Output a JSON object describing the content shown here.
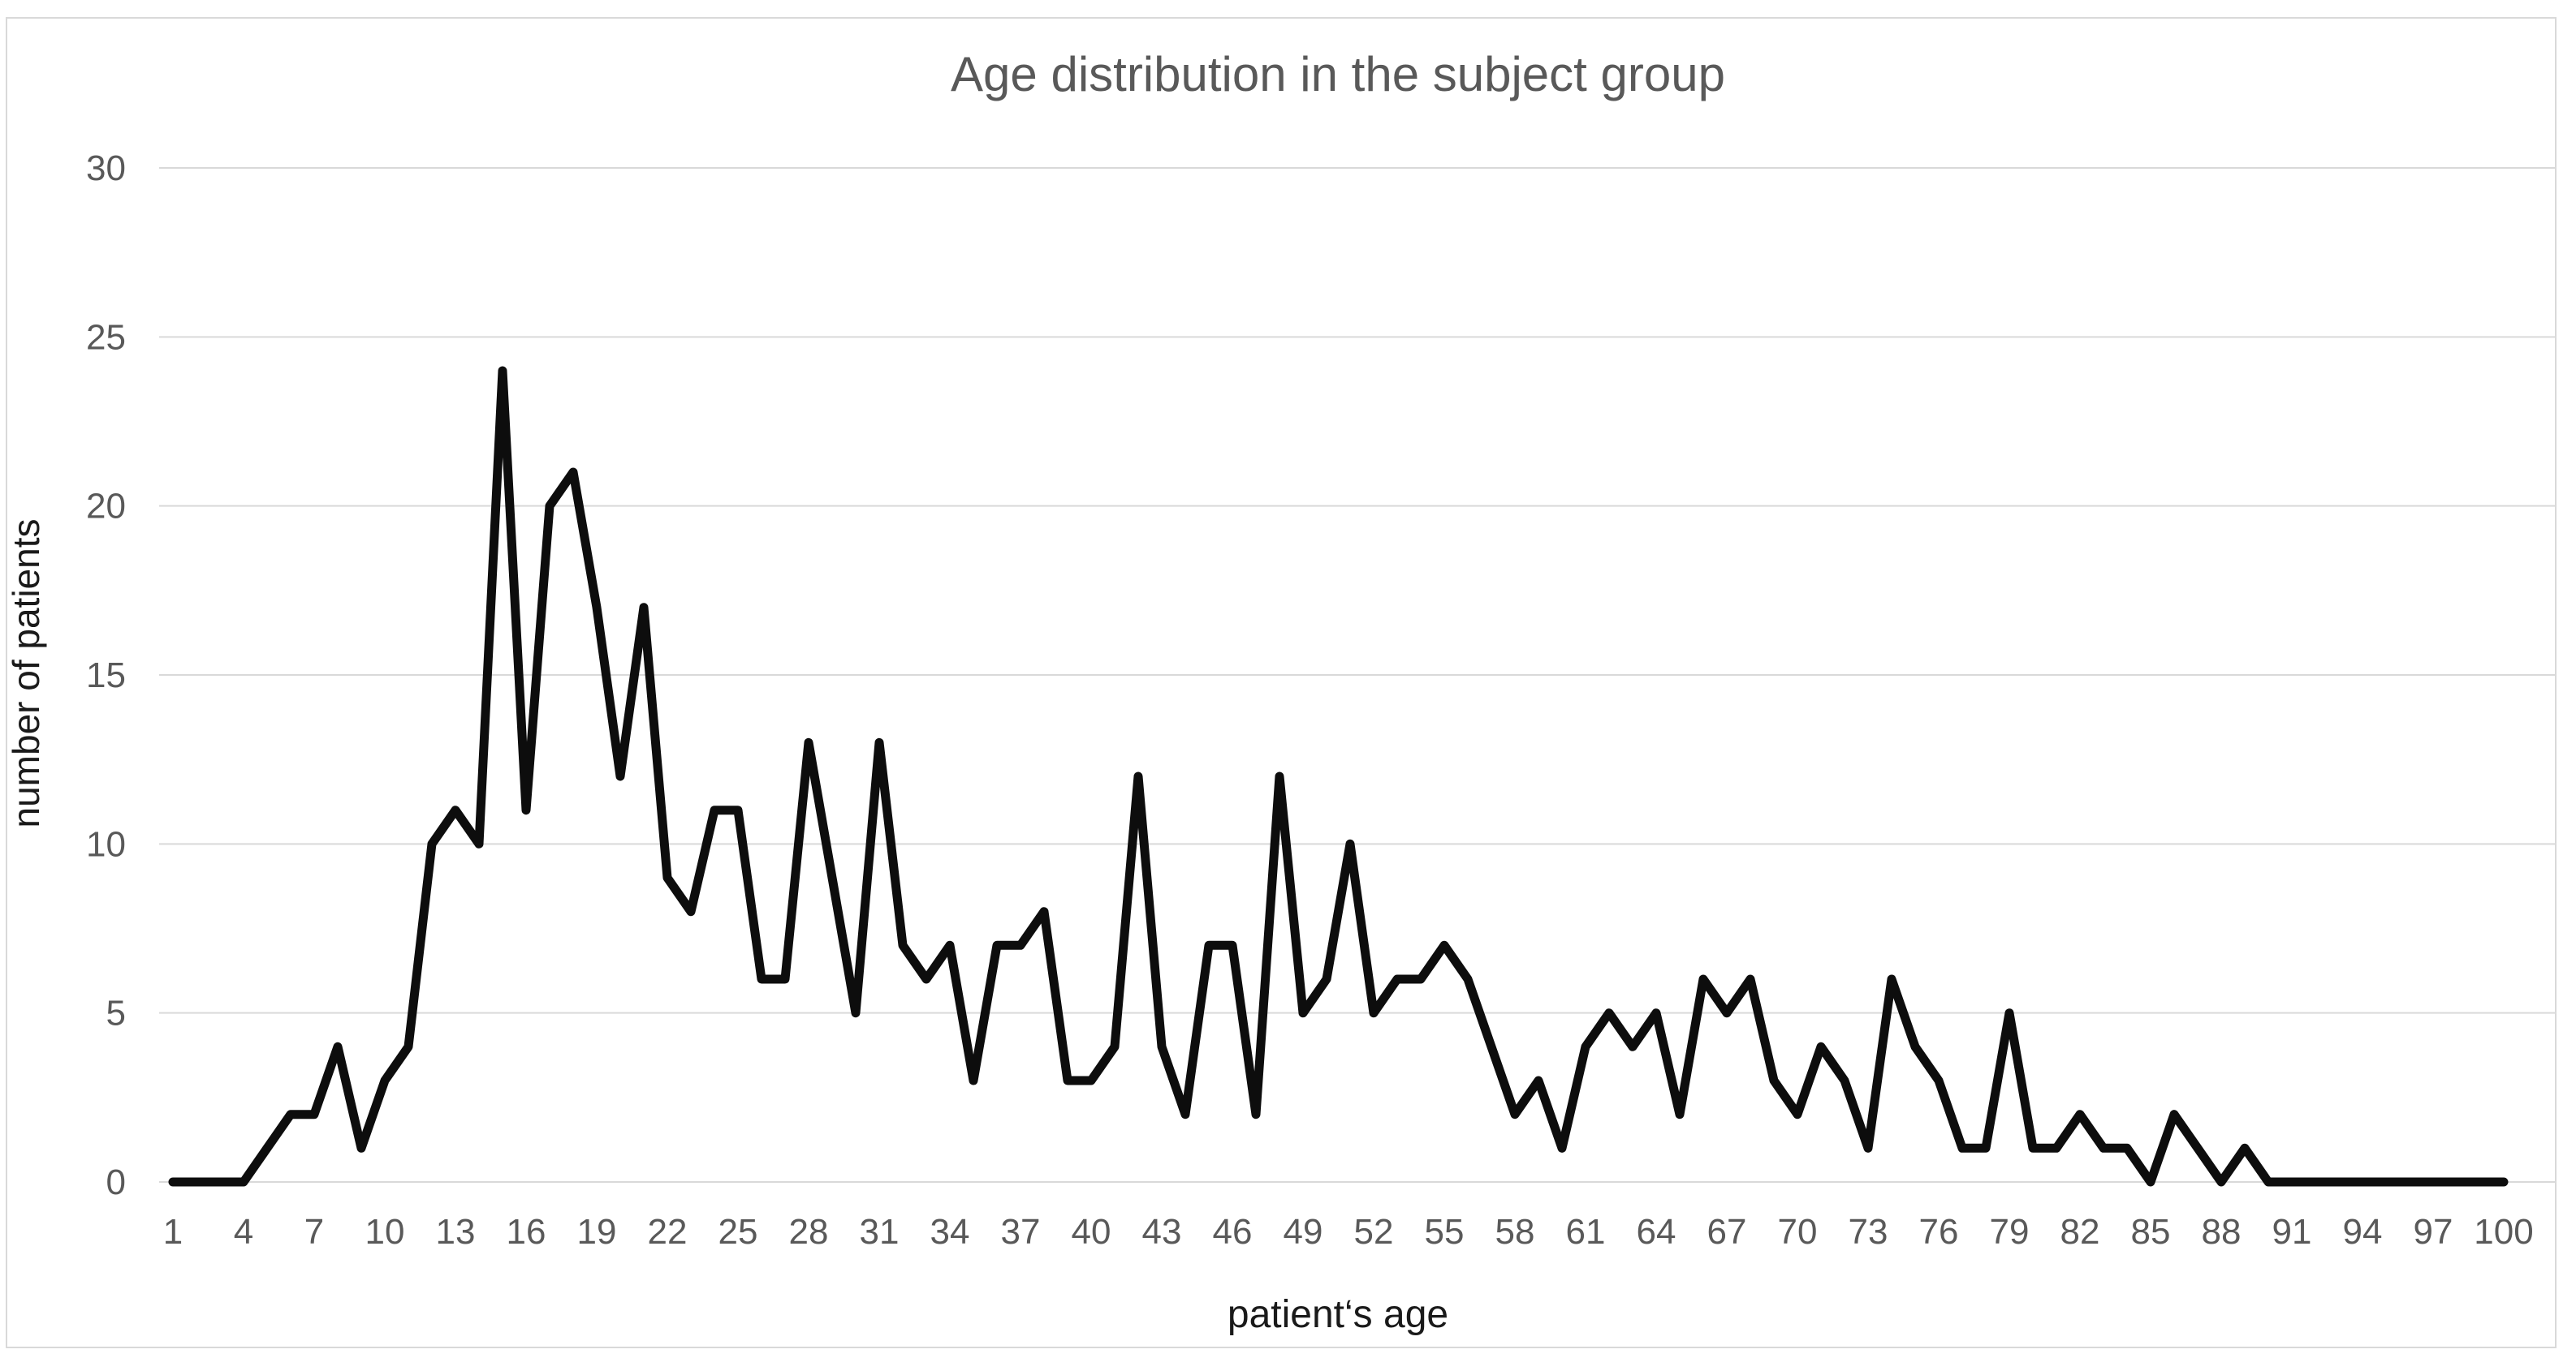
{
  "chart_data": {
    "type": "line",
    "title": "Age distribution in the subject group",
    "xlabel": "patient‘s age",
    "ylabel": "number of patients",
    "x_min": 1,
    "x_max": 100,
    "x_step": 1,
    "ylim": [
      0,
      30
    ],
    "grid": true,
    "legend": "none",
    "line_color": "#0d0d0d",
    "grid_color": "#d9d9d9",
    "tick_color": "#595959",
    "yticks": [
      0,
      5,
      10,
      15,
      20,
      25,
      30
    ],
    "xticks": [
      1,
      4,
      7,
      10,
      13,
      16,
      19,
      22,
      25,
      28,
      31,
      34,
      37,
      40,
      43,
      46,
      49,
      52,
      55,
      58,
      61,
      64,
      67,
      70,
      73,
      76,
      79,
      82,
      85,
      88,
      91,
      94,
      97,
      100
    ],
    "x": [
      1,
      2,
      3,
      4,
      5,
      6,
      7,
      8,
      9,
      10,
      11,
      12,
      13,
      14,
      15,
      16,
      17,
      18,
      19,
      20,
      21,
      22,
      23,
      24,
      25,
      26,
      27,
      28,
      29,
      30,
      31,
      32,
      33,
      34,
      35,
      36,
      37,
      38,
      39,
      40,
      41,
      42,
      43,
      44,
      45,
      46,
      47,
      48,
      49,
      50,
      51,
      52,
      53,
      54,
      55,
      56,
      57,
      58,
      59,
      60,
      61,
      62,
      63,
      64,
      65,
      66,
      67,
      68,
      69,
      70,
      71,
      72,
      73,
      74,
      75,
      76,
      77,
      78,
      79,
      80,
      81,
      82,
      83,
      84,
      85,
      86,
      87,
      88,
      89,
      90,
      91,
      92,
      93,
      94,
      95,
      96,
      97,
      98,
      99,
      100
    ],
    "values": [
      0,
      0,
      0,
      0,
      1,
      2,
      2,
      4,
      1,
      3,
      4,
      10,
      11,
      10,
      24,
      11,
      20,
      21,
      17,
      12,
      17,
      9,
      8,
      11,
      11,
      6,
      6,
      13,
      9,
      5,
      13,
      7,
      6,
      7,
      3,
      7,
      7,
      8,
      3,
      3,
      4,
      12,
      4,
      2,
      7,
      7,
      2,
      12,
      5,
      6,
      10,
      5,
      6,
      6,
      7,
      6,
      4,
      2,
      3,
      1,
      4,
      5,
      4,
      5,
      2,
      6,
      5,
      6,
      3,
      2,
      4,
      3,
      1,
      6,
      4,
      3,
      1,
      1,
      5,
      1,
      1,
      2,
      1,
      1,
      0,
      2,
      1,
      0,
      1,
      0,
      0,
      0,
      0,
      0,
      0,
      0,
      0,
      0,
      0,
      0
    ]
  }
}
